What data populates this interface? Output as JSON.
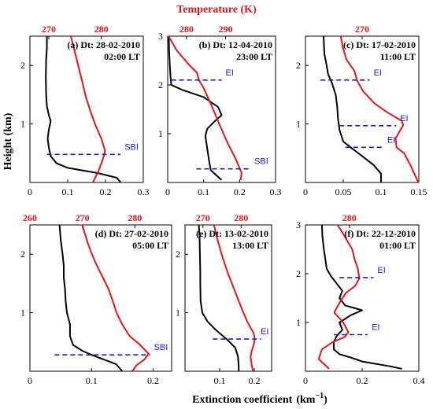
{
  "colors": {
    "extinction": "#000000",
    "temperature": "#e8141a",
    "inversion": "#1c1cc8",
    "temp_axis": "#e8141a"
  },
  "figure": {
    "top_label": "Temperature (K)",
    "bottom_label": "Extinction coefficient",
    "bottom_label_unit": "(km",
    "bottom_label_exp": "−1",
    "bottom_label_close": ")",
    "left_label": "Height (km)"
  },
  "chart_data": [
    {
      "type": "line",
      "panel": "a",
      "date": "Dt: 28-02-2010",
      "time": "02:00 LT",
      "xlim": [
        0,
        0.3
      ],
      "xticks": [
        "0",
        "0.1",
        "0.2",
        "0.3"
      ],
      "ylim": [
        0,
        2.5
      ],
      "yticks": [
        "1",
        "2"
      ],
      "tlim": [
        266.4,
        288
      ],
      "tticks": [
        {
          "v": 270,
          "t": "270"
        },
        {
          "v": 280,
          "t": "280"
        }
      ],
      "series": [
        {
          "kind": "extinction",
          "points": [
            [
              0.24,
              0
            ],
            [
              0.23,
              0.08
            ],
            [
              0.18,
              0.16
            ],
            [
              0.1,
              0.25
            ],
            [
              0.07,
              0.33
            ],
            [
              0.055,
              0.45
            ],
            [
              0.05,
              0.6
            ],
            [
              0.047,
              0.75
            ],
            [
              0.05,
              0.9
            ],
            [
              0.055,
              1.05
            ],
            [
              0.05,
              1.15
            ],
            [
              0.045,
              1.3
            ],
            [
              0.043,
              1.5
            ],
            [
              0.042,
              1.8
            ],
            [
              0.043,
              2.1
            ],
            [
              0.045,
              2.3
            ],
            [
              0.045,
              2.5
            ]
          ]
        },
        {
          "kind": "temperature",
          "points": [
            [
              278.4,
              0
            ],
            [
              279.5,
              0.2
            ],
            [
              280.5,
              0.45
            ],
            [
              280.7,
              0.55
            ],
            [
              280,
              0.75
            ],
            [
              278.8,
              1.0
            ],
            [
              278,
              1.2
            ],
            [
              277.1,
              1.45
            ],
            [
              276.3,
              1.75
            ],
            [
              275.6,
              2.0
            ],
            [
              274.9,
              2.25
            ],
            [
              274.2,
              2.5
            ]
          ]
        }
      ],
      "inversions": [
        {
          "label": "SBI",
          "height": 0.48,
          "x_from": 0.045,
          "x_to": 0.24
        }
      ]
    },
    {
      "type": "line",
      "panel": "b",
      "date": "Dt: 12-04-2010",
      "time": "23:00 LT",
      "xlim": [
        0,
        0.3
      ],
      "xticks": [
        "0",
        "0.1",
        "0.2",
        "0.3"
      ],
      "ylim": [
        0,
        3
      ],
      "yticks": [
        "1",
        "2",
        "3"
      ],
      "tlim": [
        275.2,
        302.8
      ],
      "tticks": [
        {
          "v": 280,
          "t": "280"
        },
        {
          "v": 290,
          "t": "290"
        }
      ],
      "series": [
        {
          "kind": "extinction",
          "points": [
            [
              0.15,
              0.05
            ],
            [
              0.12,
              0.25
            ],
            [
              0.115,
              0.45
            ],
            [
              0.11,
              0.7
            ],
            [
              0.105,
              0.95
            ],
            [
              0.11,
              1.1
            ],
            [
              0.13,
              1.25
            ],
            [
              0.15,
              1.38
            ],
            [
              0.14,
              1.55
            ],
            [
              0.1,
              1.75
            ],
            [
              0.04,
              1.9
            ],
            [
              0.01,
              2.0
            ],
            [
              0.008,
              2.15
            ],
            [
              0.006,
              2.4
            ],
            [
              0.004,
              2.7
            ],
            [
              0.003,
              3.0
            ]
          ]
        },
        {
          "kind": "temperature",
          "points": [
            [
              293.9,
              0.05
            ],
            [
              294.1,
              0.2
            ],
            [
              292.5,
              0.5
            ],
            [
              290.6,
              0.8
            ],
            [
              288.4,
              1.2
            ],
            [
              286.3,
              1.6
            ],
            [
              284.3,
              1.95
            ],
            [
              283.2,
              2.1
            ],
            [
              282.7,
              2.25
            ],
            [
              280.8,
              2.4
            ],
            [
              277.6,
              2.7
            ],
            [
              275.4,
              3.0
            ]
          ]
        }
      ],
      "inversions": [
        {
          "label": "SBI",
          "height": 0.28,
          "x_from": 0.08,
          "x_to": 0.23
        },
        {
          "label": "EI",
          "height": 2.1,
          "x_from": 0.01,
          "x_to": 0.15
        }
      ]
    },
    {
      "type": "line",
      "panel": "c",
      "date": "Dt: 17-02-2010",
      "time": "11:00 LT",
      "xlim": [
        0,
        0.15
      ],
      "xticks": [
        "0",
        "0.05",
        "0.1",
        "0.15"
      ],
      "ylim": [
        0,
        2.5
      ],
      "yticks": [
        "1",
        "2"
      ],
      "tlim": [
        257.3,
        282.7
      ],
      "tticks": [
        {
          "v": 270,
          "t": "270"
        }
      ],
      "series": [
        {
          "kind": "extinction",
          "points": [
            [
              0.1,
              0
            ],
            [
              0.1,
              0.15
            ],
            [
              0.09,
              0.3
            ],
            [
              0.075,
              0.45
            ],
            [
              0.06,
              0.6
            ],
            [
              0.05,
              0.7
            ],
            [
              0.045,
              0.9
            ],
            [
              0.043,
              1.1
            ],
            [
              0.042,
              1.3
            ],
            [
              0.04,
              1.5
            ],
            [
              0.035,
              1.7
            ],
            [
              0.03,
              1.85
            ],
            [
              0.028,
              2.0
            ],
            [
              0.025,
              2.2
            ],
            [
              0.024,
              2.5
            ]
          ]
        },
        {
          "kind": "temperature",
          "points": [
            [
              282.6,
              0
            ],
            [
              280.8,
              0.3
            ],
            [
              279.4,
              0.5
            ],
            [
              277.7,
              0.6
            ],
            [
              277.5,
              0.75
            ],
            [
              278.2,
              0.85
            ],
            [
              279.2,
              0.98
            ],
            [
              278.9,
              1.05
            ],
            [
              275.6,
              1.2
            ],
            [
              272.8,
              1.35
            ],
            [
              270.3,
              1.55
            ],
            [
              268.8,
              1.75
            ],
            [
              268.3,
              1.9
            ],
            [
              266.5,
              2.1
            ],
            [
              265.7,
              2.3
            ],
            [
              265.2,
              2.5
            ]
          ]
        }
      ],
      "inversions": [
        {
          "label": "EI",
          "height": 1.75,
          "x_from": 0.02,
          "x_to": 0.085
        },
        {
          "label": "EI",
          "height": 0.97,
          "x_from": 0.045,
          "x_to": 0.12
        },
        {
          "label": "EI",
          "height": 0.6,
          "x_from": 0.053,
          "x_to": 0.103
        }
      ]
    },
    {
      "type": "line",
      "panel": "d",
      "date": "Dt: 27-02-2010",
      "time": "05:00 LT",
      "xlim": [
        0,
        0.23
      ],
      "xticks": [
        "0",
        "0.1",
        "0.2"
      ],
      "ylim": [
        0,
        2.5
      ],
      "yticks": [
        "1",
        "2"
      ],
      "tlim": [
        260,
        287
      ],
      "tticks": [
        {
          "v": 260,
          "t": "260"
        },
        {
          "v": 270,
          "t": "270"
        },
        {
          "v": 280,
          "t": "280"
        }
      ],
      "series": [
        {
          "kind": "extinction",
          "points": [
            [
              0.15,
              0
            ],
            [
              0.14,
              0.12
            ],
            [
              0.12,
              0.2
            ],
            [
              0.1,
              0.28
            ],
            [
              0.085,
              0.35
            ],
            [
              0.07,
              0.45
            ],
            [
              0.065,
              0.6
            ],
            [
              0.065,
              0.8
            ],
            [
              0.06,
              1.0
            ],
            [
              0.058,
              1.2
            ],
            [
              0.057,
              1.4
            ],
            [
              0.055,
              1.6
            ],
            [
              0.055,
              1.8
            ],
            [
              0.053,
              2.0
            ],
            [
              0.05,
              2.25
            ],
            [
              0.048,
              2.5
            ]
          ]
        },
        {
          "kind": "temperature",
          "points": [
            [
              279.5,
              0
            ],
            [
              280.3,
              0.1
            ],
            [
              281.8,
              0.2
            ],
            [
              282.6,
              0.3
            ],
            [
              281,
              0.45
            ],
            [
              279,
              0.6
            ],
            [
              277.6,
              0.8
            ],
            [
              276.5,
              1.0
            ],
            [
              275.8,
              1.2
            ],
            [
              275,
              1.4
            ],
            [
              273.9,
              1.6
            ],
            [
              272.8,
              1.8
            ],
            [
              271.8,
              2.0
            ],
            [
              271,
              2.2
            ],
            [
              270.3,
              2.4
            ],
            [
              270,
              2.5
            ]
          ]
        }
      ],
      "inversions": [
        {
          "label": "SBI",
          "height": 0.28,
          "x_from": 0.04,
          "x_to": 0.195
        }
      ]
    },
    {
      "type": "line",
      "panel": "e",
      "date": "Dt: 13-02-2010",
      "time": "13:00 LT",
      "xlim": [
        0,
        0.25
      ],
      "xticks": [
        "0.1",
        "0.2"
      ],
      "ylim": [
        0,
        2.5
      ],
      "yticks": [
        "1",
        "2"
      ],
      "tlim": [
        265.3,
        288
      ],
      "tticks": [
        {
          "v": 270,
          "t": "270"
        },
        {
          "v": 280,
          "t": "280"
        }
      ],
      "series": [
        {
          "kind": "extinction",
          "points": [
            [
              0.155,
              0
            ],
            [
              0.155,
              0.1
            ],
            [
              0.153,
              0.25
            ],
            [
              0.145,
              0.4
            ],
            [
              0.12,
              0.55
            ],
            [
              0.09,
              0.7
            ],
            [
              0.065,
              0.85
            ],
            [
              0.05,
              1.0
            ],
            [
              0.045,
              1.2
            ],
            [
              0.044,
              1.5
            ],
            [
              0.044,
              1.7
            ],
            [
              0.043,
              2.0
            ],
            [
              0.042,
              2.3
            ],
            [
              0.04,
              2.5
            ]
          ]
        },
        {
          "kind": "temperature",
          "points": [
            [
              283.1,
              0
            ],
            [
              282.8,
              0.1
            ],
            [
              282.5,
              0.25
            ],
            [
              282.8,
              0.35
            ],
            [
              283.3,
              0.45
            ],
            [
              283.6,
              0.55
            ],
            [
              283.3,
              0.65
            ],
            [
              281.6,
              0.85
            ],
            [
              280,
              1.1
            ],
            [
              278.2,
              1.4
            ],
            [
              276.4,
              1.7
            ],
            [
              274.9,
              2.0
            ],
            [
              273.6,
              2.3
            ],
            [
              272.9,
              2.5
            ]
          ]
        }
      ],
      "inversions": [
        {
          "label": "EI",
          "height": 0.55,
          "x_from": 0.08,
          "x_to": 0.22
        }
      ]
    },
    {
      "type": "line",
      "panel": "f",
      "date": "Dt: 22-12-2010",
      "time": "01:00 LT",
      "xlim": [
        0,
        0.4
      ],
      "xticks": [
        "0",
        "0.2",
        "0.4"
      ],
      "ylim": [
        0,
        3
      ],
      "yticks": [
        "1",
        "2",
        "3"
      ],
      "tlim": [
        270.7,
        294.7
      ],
      "tticks": [
        {
          "v": 280,
          "t": "280"
        }
      ],
      "series": [
        {
          "kind": "extinction",
          "points": [
            [
              0.34,
              0.05
            ],
            [
              0.3,
              0.1
            ],
            [
              0.2,
              0.2
            ],
            [
              0.16,
              0.28
            ],
            [
              0.12,
              0.35
            ],
            [
              0.1,
              0.45
            ],
            [
              0.1,
              0.6
            ],
            [
              0.11,
              0.72
            ],
            [
              0.13,
              0.85
            ],
            [
              0.12,
              1.0
            ],
            [
              0.16,
              1.15
            ],
            [
              0.2,
              1.25
            ],
            [
              0.14,
              1.35
            ],
            [
              0.12,
              1.5
            ],
            [
              0.13,
              1.65
            ],
            [
              0.11,
              1.8
            ],
            [
              0.09,
              1.95
            ],
            [
              0.075,
              2.1
            ],
            [
              0.07,
              2.3
            ],
            [
              0.065,
              2.5
            ],
            [
              0.06,
              2.75
            ],
            [
              0.058,
              3.0
            ]
          ]
        },
        {
          "kind": "temperature",
          "points": [
            [
              275.7,
              0.05
            ],
            [
              273.5,
              0.25
            ],
            [
              274.2,
              0.45
            ],
            [
              276.5,
              0.6
            ],
            [
              279,
              0.7
            ],
            [
              279.8,
              0.8
            ],
            [
              278.7,
              1.0
            ],
            [
              276.8,
              1.2
            ],
            [
              277.3,
              1.3
            ],
            [
              278.2,
              1.45
            ],
            [
              279.2,
              1.6
            ],
            [
              281.2,
              1.75
            ],
            [
              282.1,
              1.9
            ],
            [
              281.8,
              2.1
            ],
            [
              281.1,
              2.3
            ],
            [
              280.6,
              2.5
            ],
            [
              279.4,
              2.7
            ],
            [
              278.5,
              2.85
            ],
            [
              277.5,
              3.0
            ]
          ]
        }
      ],
      "inversions": [
        {
          "label": "EI",
          "height": 1.92,
          "x_from": 0.12,
          "x_to": 0.24
        },
        {
          "label": "EI",
          "height": 0.75,
          "x_from": 0.1,
          "x_to": 0.22
        }
      ]
    }
  ]
}
